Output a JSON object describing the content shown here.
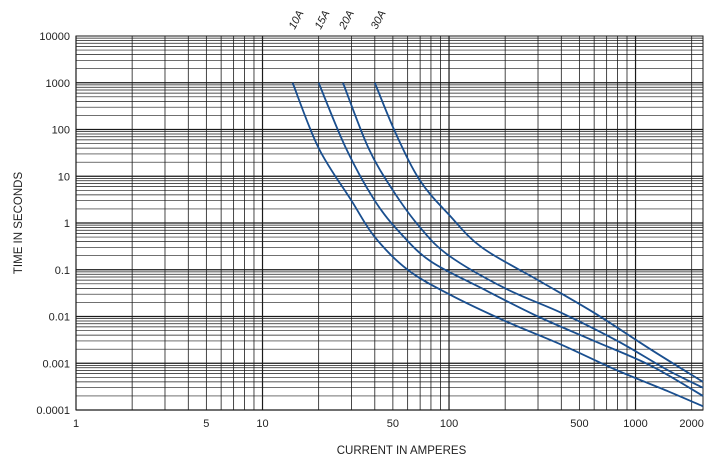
{
  "chart_data": {
    "type": "line",
    "title": "",
    "xlabel": "CURRENT IN AMPERES",
    "ylabel": "TIME IN SECONDS",
    "x_scale": "log",
    "y_scale": "log",
    "xlim": [
      1,
      2300
    ],
    "ylim": [
      0.0001,
      10000
    ],
    "grid": true,
    "x_ticks": [
      {
        "value": 1,
        "label": "1"
      },
      {
        "value": 5,
        "label": "5"
      },
      {
        "value": 10,
        "label": "10"
      },
      {
        "value": 50,
        "label": "50"
      },
      {
        "value": 100,
        "label": "100"
      },
      {
        "value": 500,
        "label": "500"
      },
      {
        "value": 1000,
        "label": "1000"
      },
      {
        "value": 2000,
        "label": "2000"
      }
    ],
    "y_ticks": [
      {
        "value": 10000,
        "label": "10000"
      },
      {
        "value": 1000,
        "label": "1000"
      },
      {
        "value": 100,
        "label": "100"
      },
      {
        "value": 10,
        "label": "10"
      },
      {
        "value": 1,
        "label": "1"
      },
      {
        "value": 0.1,
        "label": "0.1"
      },
      {
        "value": 0.01,
        "label": "0.01"
      },
      {
        "value": 0.001,
        "label": "0.001"
      },
      {
        "value": 0.0001,
        "label": "0.0001"
      }
    ],
    "colors": {
      "series": "#1a4f8f",
      "grid": "#1a1a1a"
    },
    "series": [
      {
        "name": "10A",
        "points": [
          [
            14.5,
            1000
          ],
          [
            20,
            40
          ],
          [
            30,
            3
          ],
          [
            40,
            0.5
          ],
          [
            60,
            0.1
          ],
          [
            100,
            0.03
          ],
          [
            200,
            0.008
          ],
          [
            400,
            0.0025
          ],
          [
            800,
            0.0007
          ],
          [
            1500,
            0.00025
          ],
          [
            2300,
            0.00012
          ]
        ]
      },
      {
        "name": "15A",
        "points": [
          [
            20,
            1000
          ],
          [
            28,
            40
          ],
          [
            40,
            3
          ],
          [
            55,
            0.6
          ],
          [
            80,
            0.15
          ],
          [
            150,
            0.04
          ],
          [
            300,
            0.01
          ],
          [
            600,
            0.003
          ],
          [
            1200,
            0.0009
          ],
          [
            2300,
            0.0002
          ]
        ]
      },
      {
        "name": "20A",
        "points": [
          [
            27,
            1000
          ],
          [
            37,
            40
          ],
          [
            50,
            5
          ],
          [
            70,
            0.8
          ],
          [
            100,
            0.2
          ],
          [
            200,
            0.04
          ],
          [
            400,
            0.012
          ],
          [
            800,
            0.003
          ],
          [
            1500,
            0.0007
          ],
          [
            2300,
            0.0003
          ]
        ]
      },
      {
        "name": "30A",
        "points": [
          [
            40,
            1000
          ],
          [
            52,
            80
          ],
          [
            70,
            8
          ],
          [
            100,
            1.5
          ],
          [
            150,
            0.3
          ],
          [
            300,
            0.06
          ],
          [
            600,
            0.012
          ],
          [
            1200,
            0.002
          ],
          [
            2300,
            0.0004
          ]
        ]
      }
    ]
  }
}
